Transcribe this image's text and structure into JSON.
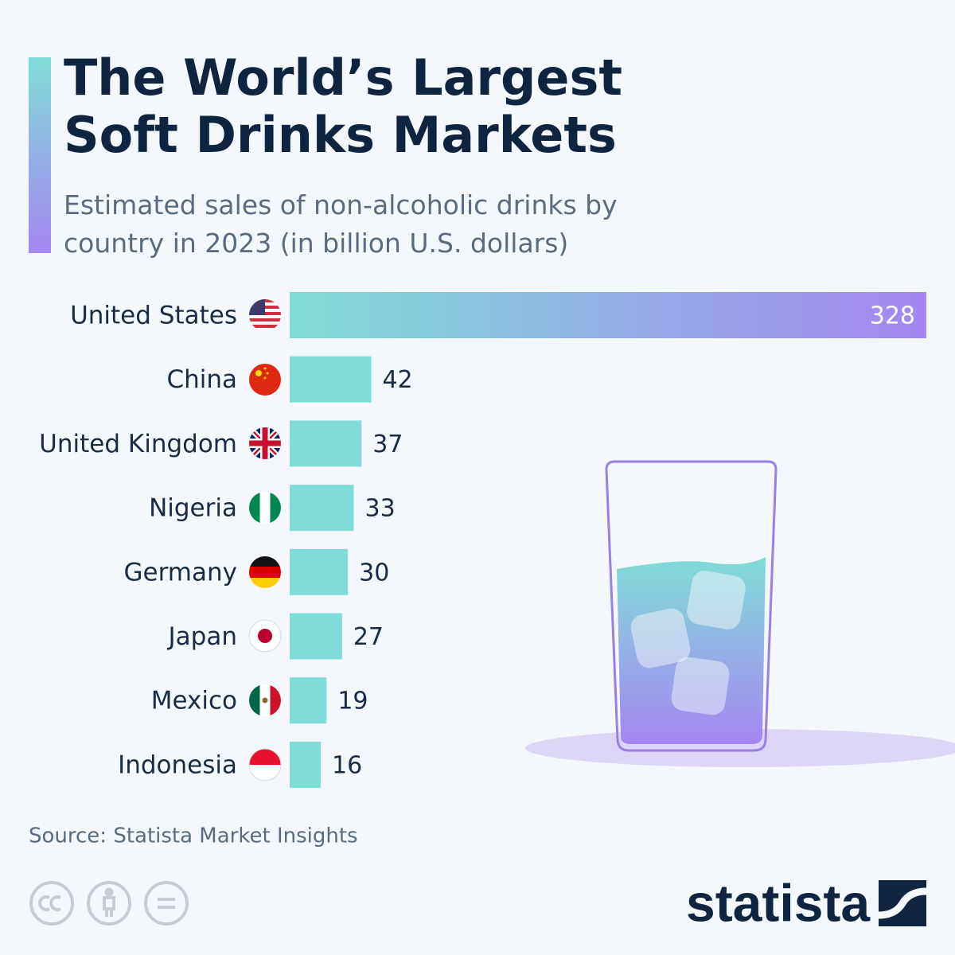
{
  "chart_data": {
    "type": "bar",
    "orientation": "horizontal",
    "title": "The World’s Largest Soft Drinks Markets",
    "subtitle": "Estimated sales of non-alcoholic drinks by country in 2023 (in billion U.S. dollars)",
    "categories": [
      "United States",
      "China",
      "United Kingdom",
      "Nigeria",
      "Germany",
      "Japan",
      "Mexico",
      "Indonesia"
    ],
    "values": [
      328,
      42,
      37,
      33,
      30,
      27,
      19,
      16
    ],
    "color": "#80dcd7",
    "source": "Source: Statista Market Insights",
    "logo": "statista"
  }
}
